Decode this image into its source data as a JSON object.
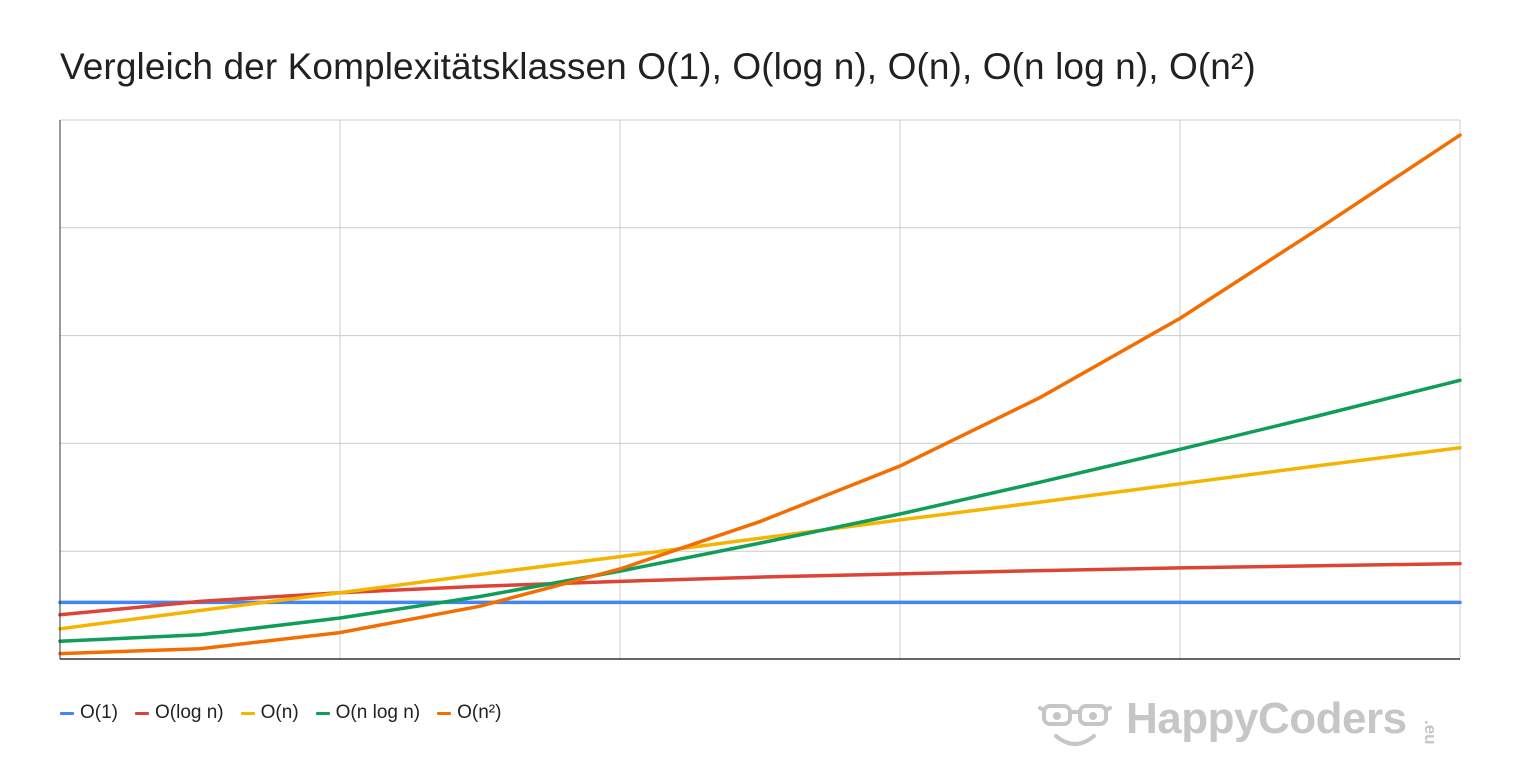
{
  "chart_data": {
    "type": "line",
    "title": "Vergleich der Komplexitätsklassen O(1), O(log n), O(n), O(n log n), O(n²)",
    "xlabel": "",
    "ylabel": "",
    "x": [
      1,
      2,
      3,
      4,
      5,
      6,
      7,
      8,
      9,
      10,
      11
    ],
    "ylim": [
      0,
      100
    ],
    "grid": true,
    "legend": "bottom-left",
    "series": [
      {
        "name": "O(1)",
        "color": "#4285f4",
        "values": [
          10.5,
          10.5,
          10.5,
          10.5,
          10.5,
          10.5,
          10.5,
          10.5,
          10.5,
          10.5,
          10.5
        ]
      },
      {
        "name": "O(log n)",
        "color": "#db4437",
        "values": [
          8.2,
          10.7,
          12.3,
          13.5,
          14.4,
          15.2,
          15.8,
          16.4,
          16.9,
          17.3,
          17.7
        ]
      },
      {
        "name": "O(n)",
        "color": "#f4b400",
        "values": [
          5.6,
          9.0,
          12.3,
          15.7,
          19.0,
          22.4,
          25.8,
          29.1,
          32.5,
          35.9,
          39.2
        ]
      },
      {
        "name": "O(n log n)",
        "color": "#0f9d58",
        "values": [
          3.3,
          4.5,
          7.6,
          11.6,
          16.3,
          21.5,
          26.9,
          32.8,
          38.9,
          45.2,
          51.7
        ]
      },
      {
        "name": "O(n²)",
        "color": "#f46d00",
        "values": [
          1.0,
          1.9,
          4.9,
          9.8,
          16.7,
          25.5,
          35.8,
          48.5,
          63.2,
          80.0,
          97.2
        ]
      }
    ]
  },
  "watermark": {
    "text": "HappyCoders",
    "suffix": ".eu"
  }
}
